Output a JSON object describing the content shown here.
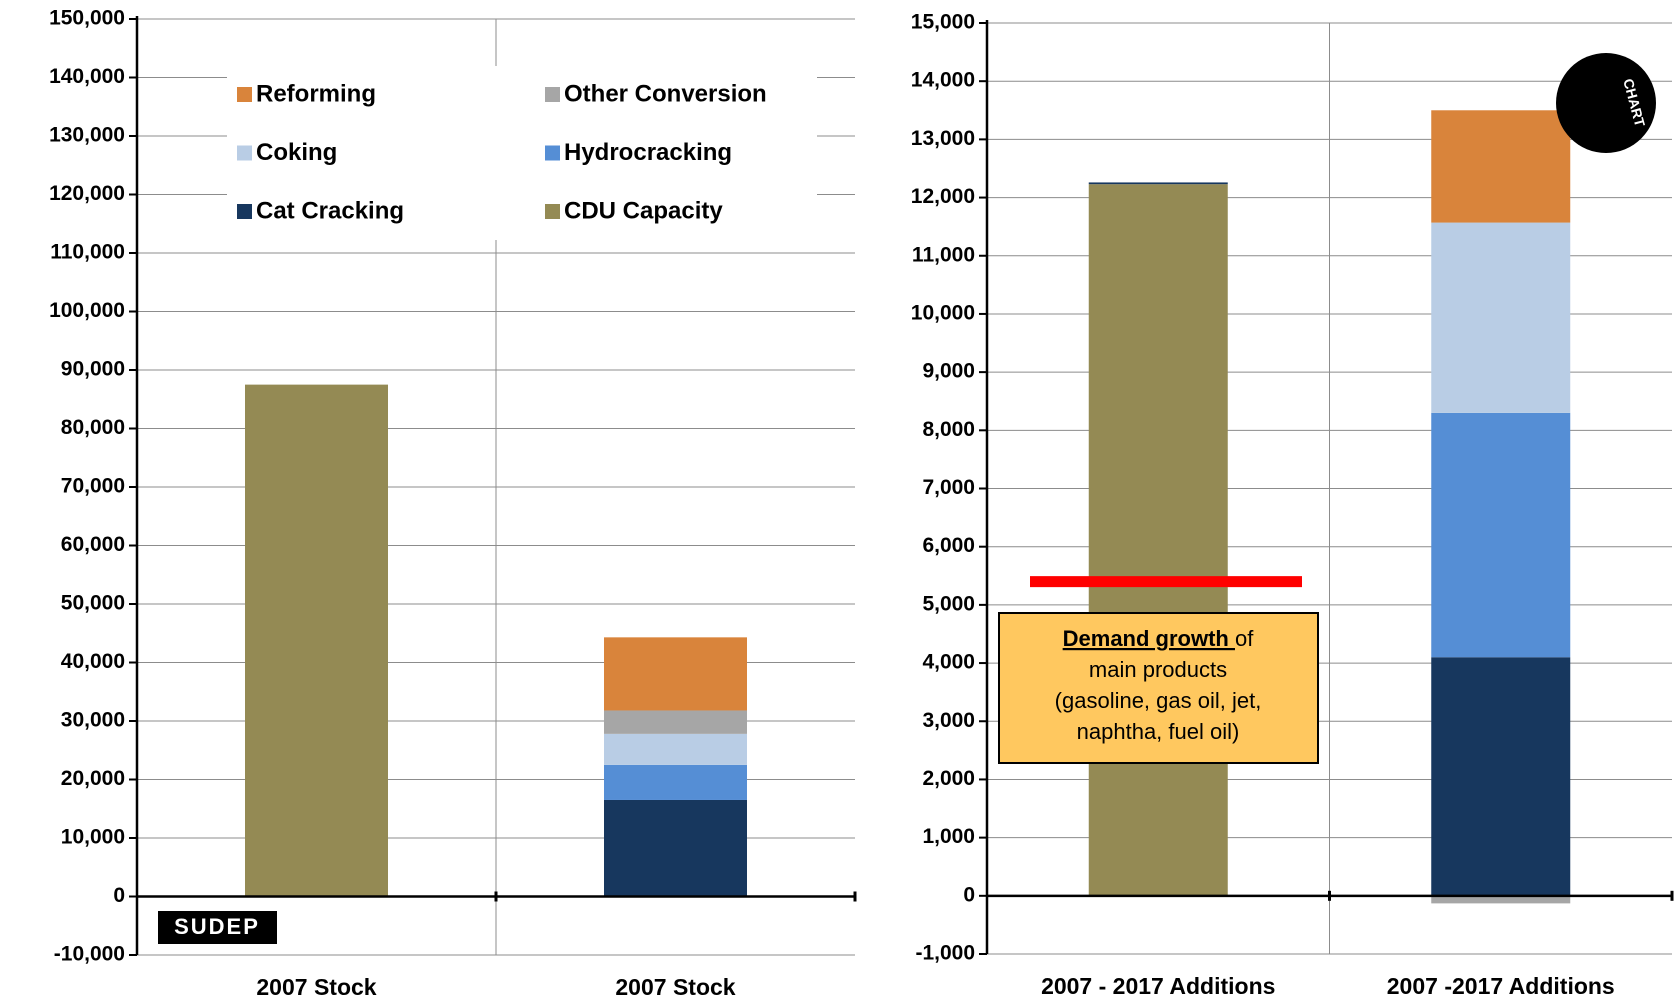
{
  "chart_data": [
    {
      "type": "bar",
      "stacked": true,
      "grid": true,
      "legend": "top",
      "categories": [
        "2007 Stock",
        "2007 Stock"
      ],
      "series": [
        {
          "name": "Reforming",
          "color": "#d9843b",
          "values": [
            null,
            12500
          ]
        },
        {
          "name": "Other Conversion",
          "color": "#a6a6a6",
          "values": [
            null,
            4000
          ]
        },
        {
          "name": "Coking",
          "color": "#b9cde5",
          "values": [
            null,
            5300
          ]
        },
        {
          "name": "Hydrocracking",
          "color": "#558ed5",
          "values": [
            null,
            6000
          ]
        },
        {
          "name": "Cat Cracking",
          "color": "#17375e",
          "values": [
            null,
            16500
          ]
        },
        {
          "name": "CDU Capacity",
          "color": "#948a54",
          "values": [
            87500,
            null
          ]
        }
      ],
      "ylim": [
        -10000,
        150000
      ],
      "yticks": [
        {
          "value": -10000,
          "label": "-10,000"
        },
        0,
        {
          "value": 10000,
          "label": "10,000"
        },
        {
          "value": 20000,
          "label": "20,000"
        },
        {
          "value": 30000,
          "label": "30,000"
        },
        {
          "value": 40000,
          "label": "40,000"
        },
        {
          "value": 50000,
          "label": "50,000"
        },
        {
          "value": 60000,
          "label": "60,000"
        },
        {
          "value": 70000,
          "label": "70,000"
        },
        {
          "value": 80000,
          "label": "80,000"
        },
        {
          "value": 90000,
          "label": "90,000"
        },
        {
          "value": 100000,
          "label": "100,000"
        },
        {
          "value": 110000,
          "label": "110,000"
        },
        {
          "value": 120000,
          "label": "120,000"
        },
        {
          "value": 130000,
          "label": "130,000"
        },
        {
          "value": 140000,
          "label": "140,000"
        },
        {
          "value": 150000,
          "label": "150,000"
        }
      ],
      "logo": "SUDEP"
    },
    {
      "type": "bar",
      "stacked": true,
      "grid": true,
      "categories": [
        "2007 - 2017 Additions",
        "2007 -2017 Additions"
      ],
      "series": [
        {
          "name": "Reforming",
          "color": "#d9843b",
          "values": [
            null,
            1930
          ]
        },
        {
          "name": "Other Conversion",
          "color": "#a6a6a6",
          "values": [
            null,
            -130
          ]
        },
        {
          "name": "Coking",
          "color": "#b9cde5",
          "values": [
            null,
            3270
          ]
        },
        {
          "name": "Hydrocracking",
          "color": "#558ed5",
          "values": [
            null,
            4200
          ]
        },
        {
          "name": "Cat Cracking",
          "color": "#17375e",
          "values": [
            30,
            4100
          ]
        },
        {
          "name": "CDU Capacity",
          "color": "#948a54",
          "values": [
            12230,
            null
          ]
        }
      ],
      "ylim": [
        -1000,
        15000
      ],
      "yticks": [
        {
          "value": -1000,
          "label": "-1,000"
        },
        0,
        {
          "value": 1000,
          "label": "1,000"
        },
        {
          "value": 2000,
          "label": "2,000"
        },
        {
          "value": 3000,
          "label": "3,000"
        },
        {
          "value": 4000,
          "label": "4,000"
        },
        {
          "value": 5000,
          "label": "5,000"
        },
        {
          "value": 6000,
          "label": "6,000"
        },
        {
          "value": 7000,
          "label": "7,000"
        },
        {
          "value": 8000,
          "label": "8,000"
        },
        {
          "value": 9000,
          "label": "9,000"
        },
        {
          "value": 10000,
          "label": "10,000"
        },
        {
          "value": 11000,
          "label": "11,000"
        },
        {
          "value": 12000,
          "label": "12,000"
        },
        {
          "value": 13000,
          "label": "13,000"
        },
        {
          "value": 14000,
          "label": "14,000"
        },
        {
          "value": 15000,
          "label": "15,000"
        }
      ],
      "reference_line": {
        "value": 5400,
        "color": "#ff0000"
      },
      "annotation_bold": "Demand growth ",
      "annotation_lines": [
        "of",
        "main products",
        "(gasoline, gas oil, jet,",
        "naphtha, fuel oil)"
      ],
      "logo": "CHART"
    }
  ]
}
